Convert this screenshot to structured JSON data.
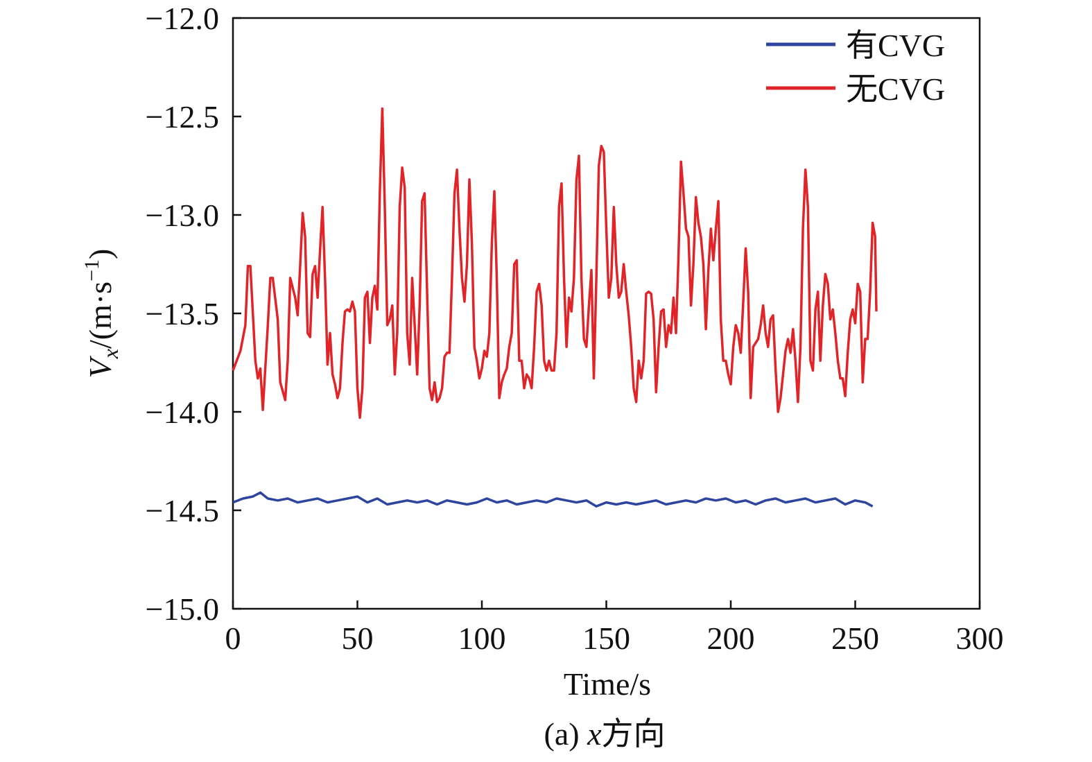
{
  "chart_data": {
    "type": "line",
    "xlabel": "Time/s",
    "ylabel": [
      "V",
      "x",
      "/(m·s",
      "−1",
      ")"
    ],
    "caption": [
      "(a) ",
      "x",
      "方向"
    ],
    "legend": "upper right",
    "xlim": [
      0,
      300
    ],
    "xticks": [
      0,
      50,
      100,
      150,
      200,
      250,
      300
    ],
    "ylim": [
      -15,
      -12
    ],
    "yticks": [
      {
        "value": -15,
        "label": "−15.0"
      },
      {
        "value": -14.5,
        "label": "−14.5"
      },
      {
        "value": -14,
        "label": "−14.0"
      },
      {
        "value": -13.5,
        "label": "−13.5"
      },
      {
        "value": -13,
        "label": "−13.0"
      },
      {
        "value": -12.5,
        "label": "−12.5"
      },
      {
        "value": -12,
        "label": "−12.0"
      }
    ],
    "series": [
      {
        "name": "有CVG",
        "color": "#2e45a0",
        "x": [
          0,
          4,
          8,
          11,
          14,
          18,
          22,
          26,
          30,
          34,
          38,
          42,
          46,
          50,
          54,
          58,
          62,
          66,
          70,
          74,
          78,
          82,
          86,
          90,
          94,
          98,
          102,
          106,
          110,
          114,
          118,
          122,
          126,
          130,
          134,
          138,
          142,
          146,
          150,
          154,
          158,
          162,
          166,
          170,
          174,
          178,
          182,
          186,
          190,
          194,
          198,
          202,
          206,
          210,
          214,
          218,
          222,
          226,
          230,
          234,
          238,
          242,
          246,
          250,
          254,
          257
        ],
        "values": [
          -14.46,
          -14.44,
          -14.43,
          -14.41,
          -14.44,
          -14.45,
          -14.44,
          -14.46,
          -14.45,
          -14.44,
          -14.46,
          -14.45,
          -14.44,
          -14.43,
          -14.46,
          -14.44,
          -14.47,
          -14.46,
          -14.45,
          -14.46,
          -14.45,
          -14.47,
          -14.45,
          -14.46,
          -14.47,
          -14.46,
          -14.44,
          -14.46,
          -14.45,
          -14.47,
          -14.46,
          -14.45,
          -14.46,
          -14.44,
          -14.45,
          -14.46,
          -14.45,
          -14.48,
          -14.46,
          -14.47,
          -14.46,
          -14.47,
          -14.46,
          -14.45,
          -14.47,
          -14.46,
          -14.45,
          -14.46,
          -14.44,
          -14.45,
          -14.44,
          -14.46,
          -14.45,
          -14.47,
          -14.45,
          -14.44,
          -14.46,
          -14.45,
          -14.44,
          -14.46,
          -14.45,
          -14.44,
          -14.47,
          -14.45,
          -14.46,
          -14.48
        ]
      },
      {
        "name": "无CVG",
        "color": "#e02428",
        "x": [
          0,
          3,
          5,
          6,
          7,
          9,
          10,
          11,
          12,
          14,
          15,
          16,
          18,
          19,
          21,
          22,
          23,
          25,
          26,
          27,
          28,
          29,
          30,
          31,
          32,
          33,
          34,
          35,
          36,
          37,
          38,
          39,
          40,
          41,
          42,
          43,
          44,
          45,
          46,
          47,
          48,
          49,
          50,
          51,
          52,
          53,
          54,
          55,
          56,
          57,
          58,
          59,
          60,
          61,
          62,
          63,
          64,
          65,
          66,
          67,
          68,
          69,
          70,
          71,
          72,
          73,
          74,
          75,
          76,
          77,
          78,
          79,
          80,
          81,
          82,
          83,
          84,
          85,
          86,
          87,
          88,
          89,
          90,
          91,
          92,
          93,
          94,
          95,
          96,
          97,
          98,
          99,
          100,
          101,
          102,
          103,
          104,
          105,
          106,
          107,
          108,
          109,
          110,
          111,
          112,
          113,
          114,
          115,
          116,
          117,
          118,
          119,
          120,
          121,
          122,
          123,
          124,
          125,
          126,
          127,
          128,
          129,
          130,
          131,
          132,
          133,
          134,
          135,
          136,
          137,
          138,
          139,
          140,
          141,
          142,
          143,
          144,
          145,
          146,
          147,
          148,
          149,
          150,
          151,
          152,
          153,
          154,
          155,
          156,
          157,
          158,
          159,
          160,
          161,
          162,
          163,
          164,
          165,
          166,
          167,
          168,
          169,
          170,
          171,
          172,
          173,
          174,
          175,
          176,
          177,
          178,
          179,
          180,
          181,
          182,
          183,
          184,
          185,
          186,
          187,
          188,
          189,
          190,
          191,
          192,
          193,
          194,
          195,
          196,
          197,
          198,
          199,
          200,
          201,
          202,
          203,
          204,
          205,
          206,
          207,
          208,
          209,
          210,
          211,
          212,
          213,
          214,
          215,
          216,
          217,
          218,
          219,
          220,
          221,
          222,
          223,
          224,
          225,
          226,
          227,
          228,
          229,
          230,
          231,
          232,
          233,
          234,
          235,
          236,
          237,
          238,
          239,
          240,
          241,
          242,
          243,
          244,
          245,
          246,
          247,
          248,
          249,
          250,
          251,
          252,
          253,
          254,
          255,
          256,
          257,
          258,
          258.5
        ],
        "values": [
          -13.79,
          -13.69,
          -13.56,
          -13.26,
          -13.26,
          -13.74,
          -13.83,
          -13.78,
          -13.99,
          -13.56,
          -13.32,
          -13.32,
          -13.53,
          -13.85,
          -13.94,
          -13.74,
          -13.32,
          -13.42,
          -13.51,
          -13.26,
          -12.99,
          -13.11,
          -13.6,
          -13.62,
          -13.3,
          -13.26,
          -13.42,
          -13.18,
          -12.96,
          -13.32,
          -13.76,
          -13.6,
          -13.81,
          -13.86,
          -13.93,
          -13.88,
          -13.65,
          -13.49,
          -13.48,
          -13.49,
          -13.44,
          -13.49,
          -13.88,
          -14.03,
          -13.88,
          -13.42,
          -13.39,
          -13.65,
          -13.42,
          -13.36,
          -13.48,
          -12.89,
          -12.46,
          -12.96,
          -13.56,
          -13.53,
          -13.46,
          -13.81,
          -13.6,
          -12.96,
          -12.76,
          -12.86,
          -13.6,
          -13.76,
          -13.32,
          -13.56,
          -13.81,
          -13.46,
          -12.93,
          -12.89,
          -13.39,
          -13.88,
          -13.94,
          -13.85,
          -13.95,
          -13.93,
          -13.88,
          -13.72,
          -13.7,
          -13.7,
          -13.32,
          -12.89,
          -12.77,
          -13.07,
          -13.32,
          -13.44,
          -13.25,
          -12.82,
          -13.14,
          -13.67,
          -13.74,
          -13.83,
          -13.78,
          -13.69,
          -13.72,
          -13.6,
          -13.14,
          -12.88,
          -13.32,
          -13.93,
          -13.85,
          -13.81,
          -13.78,
          -13.67,
          -13.6,
          -13.25,
          -13.23,
          -13.74,
          -13.74,
          -13.88,
          -13.81,
          -13.83,
          -13.88,
          -13.67,
          -13.39,
          -13.35,
          -13.46,
          -13.74,
          -13.79,
          -13.74,
          -13.79,
          -13.79,
          -13.6,
          -12.96,
          -12.84,
          -13.32,
          -13.67,
          -13.42,
          -13.49,
          -13.32,
          -12.82,
          -12.7,
          -13.32,
          -13.63,
          -13.67,
          -13.46,
          -13.28,
          -13.83,
          -13.32,
          -12.75,
          -12.65,
          -12.68,
          -13.07,
          -13.42,
          -13.32,
          -12.96,
          -13.25,
          -13.42,
          -13.39,
          -13.25,
          -13.39,
          -13.51,
          -13.67,
          -13.88,
          -13.95,
          -13.74,
          -13.83,
          -13.74,
          -13.4,
          -13.39,
          -13.4,
          -13.53,
          -13.9,
          -13.67,
          -13.49,
          -13.48,
          -13.67,
          -13.56,
          -13.6,
          -13.42,
          -13.6,
          -13.21,
          -12.73,
          -12.89,
          -13.07,
          -13.11,
          -13.46,
          -13.25,
          -12.91,
          -13.04,
          -13.11,
          -13.25,
          -13.58,
          -13.28,
          -13.07,
          -13.23,
          -13.07,
          -12.93,
          -13.53,
          -13.74,
          -13.74,
          -13.81,
          -13.86,
          -13.67,
          -13.56,
          -13.6,
          -13.7,
          -13.44,
          -13.17,
          -13.39,
          -13.93,
          -13.67,
          -13.65,
          -13.63,
          -13.56,
          -13.46,
          -13.6,
          -13.67,
          -13.53,
          -13.51,
          -13.78,
          -14,
          -13.93,
          -13.81,
          -13.69,
          -13.63,
          -13.7,
          -13.58,
          -13.74,
          -13.95,
          -13.67,
          -13.07,
          -12.77,
          -12.96,
          -13.74,
          -13.79,
          -13.48,
          -13.39,
          -13.74,
          -13.46,
          -13.3,
          -13.35,
          -13.53,
          -13.48,
          -13.6,
          -13.74,
          -13.83,
          -13.83,
          -13.92,
          -13.7,
          -13.53,
          -13.48,
          -13.55,
          -13.35,
          -13.39,
          -13.85,
          -13.63,
          -13.63,
          -13.39,
          -13.04,
          -13.11,
          -13.49
        ]
      }
    ]
  }
}
